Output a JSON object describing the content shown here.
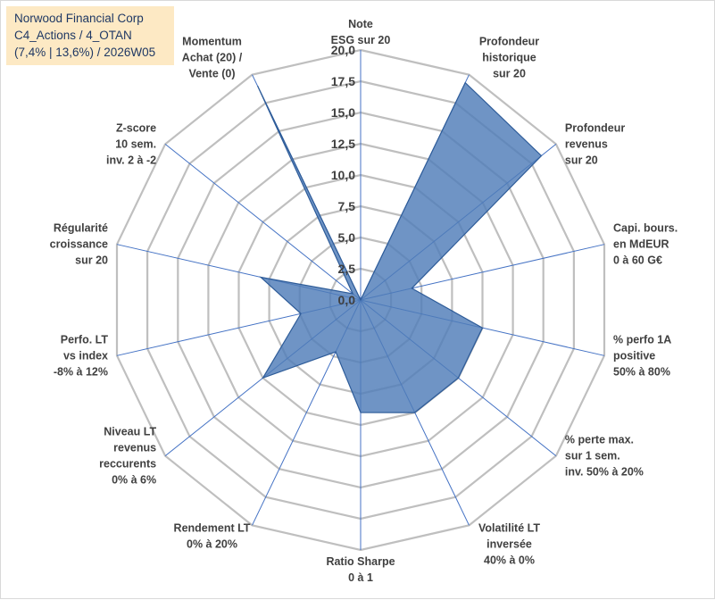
{
  "title": {
    "line1": "Norwood Financial Corp",
    "line2": "C4_Actions / 4_OTAN",
    "line3": "(7,4% | 13,6%) / 2026W05"
  },
  "chart_data": {
    "type": "radar",
    "rmin": 0,
    "rmax": 20,
    "ticks": [
      "0,0",
      "2,5",
      "5,0",
      "7,5",
      "10,0",
      "12,5",
      "15,0",
      "17,5",
      "20,0"
    ],
    "tick_values": [
      0,
      2.5,
      5,
      7.5,
      10,
      12.5,
      15,
      17.5,
      20
    ],
    "axes": [
      {
        "lines": [
          "Note",
          "ESG sur 20"
        ],
        "value": 0
      },
      {
        "lines": [
          "Profondeur",
          "historique",
          "sur 20"
        ],
        "value": 19.3
      },
      {
        "lines": [
          "Profondeur",
          "revenus",
          "sur 20"
        ],
        "value": 18.5
      },
      {
        "lines": [
          "Capi. bours.",
          "en MdEUR",
          "0 à 60 G€"
        ],
        "value": 4.2
      },
      {
        "lines": [
          "% perfo 1A",
          "positive",
          "50% à 80%"
        ],
        "value": 10.0
      },
      {
        "lines": [
          "% perte max.",
          "sur 1 sem.",
          "inv. 50% à 20%"
        ],
        "value": 10.0
      },
      {
        "lines": [
          "Volatilité LT",
          "inversée",
          "40% à 0%"
        ],
        "value": 10.0
      },
      {
        "lines": [
          "Ratio Sharpe",
          "0 à 1"
        ],
        "value": 9.0
      },
      {
        "lines": [
          "Rendement LT",
          "0% à 20%"
        ],
        "value": 4.6
      },
      {
        "lines": [
          "Niveau LT",
          "revenus",
          "reccurents",
          "0% à 6%"
        ],
        "value": 10.0
      },
      {
        "lines": [
          "Perfo. LT",
          "vs index",
          "-8% à 12%"
        ],
        "value": 4.9
      },
      {
        "lines": [
          "Régularité",
          "croissance",
          "sur 20"
        ],
        "value": 8.2
      },
      {
        "lines": [
          "Z-score",
          "10 sem.",
          "inv. 2 à -2"
        ],
        "value": 0.8
      },
      {
        "lines": [
          "Momentum",
          "Achat (20) /",
          "Vente (0)"
        ],
        "value": 19.0
      }
    ],
    "colors": {
      "fill": "#4f7db8",
      "stroke": "#2e5c99",
      "grid": "#bfbfbf",
      "spoke": "#4472c4",
      "text": "#404040"
    }
  }
}
